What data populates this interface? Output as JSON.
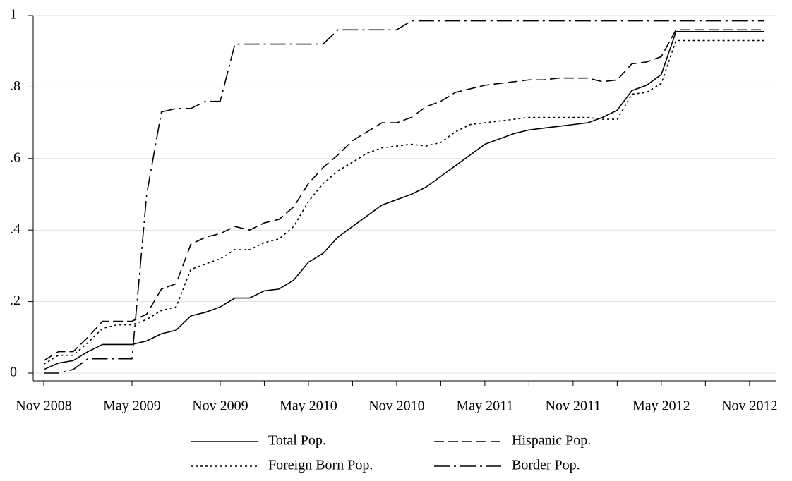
{
  "chart_data": {
    "type": "line",
    "categories": [
      "Nov 2008",
      null,
      null,
      null,
      null,
      null,
      "May 2009",
      null,
      null,
      null,
      null,
      null,
      "Nov 2009",
      null,
      null,
      null,
      null,
      null,
      "May 2010",
      null,
      null,
      null,
      null,
      null,
      "Nov 2010",
      null,
      null,
      null,
      null,
      null,
      "May 2011",
      null,
      null,
      null,
      null,
      null,
      "Nov 2011",
      null,
      null,
      null,
      null,
      null,
      "May 2012",
      null,
      null,
      null,
      null,
      null,
      "Nov 2012",
      null
    ],
    "series": [
      {
        "name": "Total Pop.",
        "color": "#000000",
        "dash": "solid",
        "values": [
          0.01,
          0.028,
          0.035,
          0.06,
          0.08,
          0.08,
          0.08,
          0.09,
          0.11,
          0.12,
          0.16,
          0.17,
          0.185,
          0.21,
          0.21,
          0.23,
          0.235,
          0.26,
          0.31,
          0.335,
          0.38,
          0.41,
          0.44,
          0.47,
          0.485,
          0.5,
          0.52,
          0.55,
          0.58,
          0.61,
          0.64,
          0.655,
          0.67,
          0.68,
          0.685,
          0.69,
          0.695,
          0.7,
          0.715,
          0.735,
          0.79,
          0.805,
          0.835,
          0.955,
          0.955,
          0.955,
          0.955,
          0.955,
          0.955,
          0.955
        ]
      },
      {
        "name": "Hispanic Pop.",
        "color": "#000000",
        "dash": "dash",
        "values": [
          0.035,
          0.06,
          0.06,
          0.1,
          0.145,
          0.145,
          0.145,
          0.165,
          0.235,
          0.25,
          0.36,
          0.38,
          0.39,
          0.41,
          0.4,
          0.42,
          0.43,
          0.465,
          0.53,
          0.575,
          0.61,
          0.65,
          0.675,
          0.7,
          0.7,
          0.715,
          0.745,
          0.76,
          0.785,
          0.795,
          0.805,
          0.81,
          0.815,
          0.82,
          0.82,
          0.825,
          0.825,
          0.825,
          0.815,
          0.82,
          0.865,
          0.87,
          0.885,
          0.96,
          0.96,
          0.96,
          0.96,
          0.96,
          0.96,
          0.96
        ]
      },
      {
        "name": "Foreign Born Pop.",
        "color": "#000000",
        "dash": "dot",
        "values": [
          0.025,
          0.05,
          0.05,
          0.085,
          0.125,
          0.135,
          0.135,
          0.15,
          0.175,
          0.185,
          0.29,
          0.305,
          0.32,
          0.345,
          0.345,
          0.365,
          0.375,
          0.41,
          0.48,
          0.53,
          0.565,
          0.59,
          0.615,
          0.63,
          0.635,
          0.64,
          0.635,
          0.645,
          0.675,
          0.695,
          0.7,
          0.705,
          0.71,
          0.715,
          0.715,
          0.715,
          0.715,
          0.715,
          0.71,
          0.71,
          0.78,
          0.785,
          0.81,
          0.93,
          0.93,
          0.93,
          0.93,
          0.93,
          0.93,
          0.93
        ]
      },
      {
        "name": "Border Pop.",
        "color": "#000000",
        "dash": "dashdot",
        "values": [
          0,
          0,
          0.01,
          0.04,
          0.04,
          0.04,
          0.04,
          0.5,
          0.73,
          0.74,
          0.74,
          0.76,
          0.76,
          0.92,
          0.92,
          0.92,
          0.92,
          0.92,
          0.92,
          0.92,
          0.96,
          0.96,
          0.96,
          0.96,
          0.96,
          0.985,
          0.985,
          0.985,
          0.985,
          0.985,
          0.985,
          0.985,
          0.985,
          0.985,
          0.985,
          0.985,
          0.985,
          0.985,
          0.985,
          0.985,
          0.985,
          0.985,
          0.985,
          0.985,
          0.985,
          0.985,
          0.985,
          0.985,
          0.985,
          0.985
        ]
      }
    ],
    "ylim": [
      0,
      1
    ],
    "yticks": [
      0,
      {
        "value": 0.2,
        "label": ".2"
      },
      {
        "value": 0.4,
        "label": ".4"
      },
      {
        "value": 0.6,
        "label": ".6"
      },
      {
        "value": 0.8,
        "label": ".8"
      },
      1
    ],
    "grid": true,
    "legend": "bottom"
  }
}
